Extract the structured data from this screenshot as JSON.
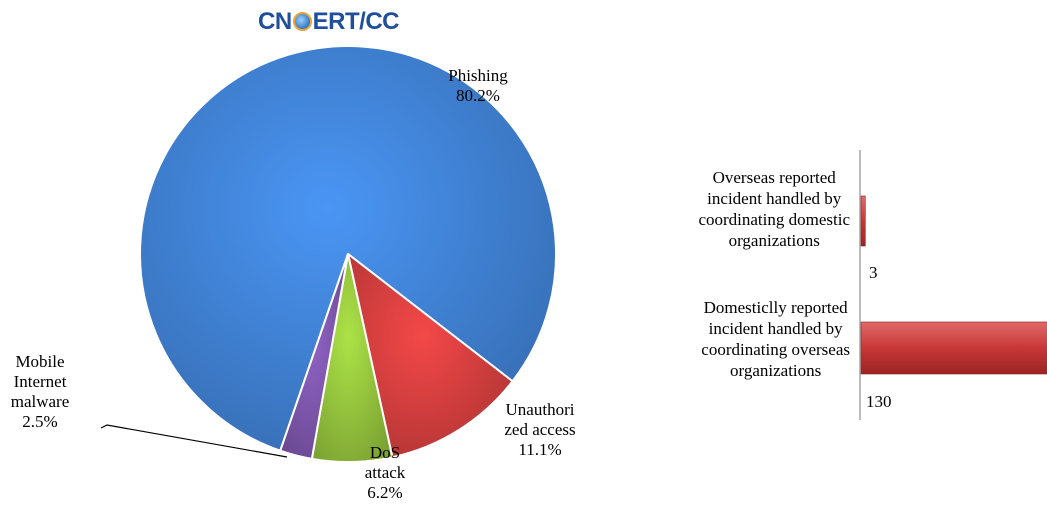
{
  "logo": {
    "prefix": "CN",
    "suffix": "ERT/CC"
  },
  "colors": {
    "phishing": "#3f7fd0",
    "unauthorized": "#cf3d3d",
    "dos": "#92c03c",
    "mobile": "#7b55a9",
    "bar": "#c83737"
  },
  "chart_data": [
    {
      "type": "pie",
      "slices": [
        {
          "label_lines": [
            "Phishing",
            "80.2%"
          ],
          "value": 80.2
        },
        {
          "label_lines": [
            "Unauthori",
            "zed access",
            "11.1%"
          ],
          "value": 11.1
        },
        {
          "label_lines": [
            "DoS",
            "attack",
            "6.2%"
          ],
          "value": 6.2
        },
        {
          "label_lines": [
            "Mobile",
            "Internet",
            "malware",
            "2.5%"
          ],
          "value": 2.5
        }
      ]
    },
    {
      "type": "bar",
      "orientation": "horizontal",
      "categories": [
        [
          "Overseas reported",
          "incident handled by",
          "coordinating domestic",
          "organizations"
        ],
        [
          "Domesticlly reported",
          "incident handled by",
          "coordinating overseas",
          "organizations"
        ]
      ],
      "values": [
        3,
        130
      ],
      "value_labels": [
        "3",
        "130"
      ]
    }
  ]
}
